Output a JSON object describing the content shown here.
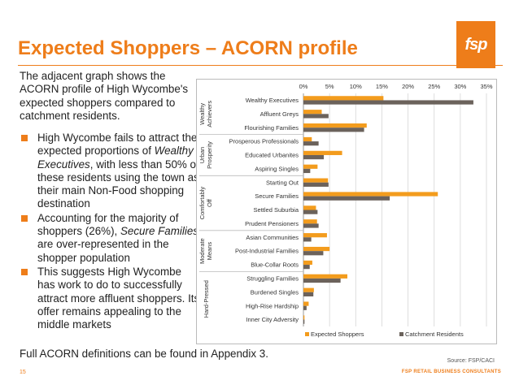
{
  "title": "Expected Shoppers – ACORN profile",
  "logo_text": "fsp",
  "intro": "The adjacent graph shows the ACORN profile of High Wycombe's expected shoppers compared to catchment residents.",
  "bullets": [
    {
      "html_parts": [
        "High Wycombe fails to attract the expected proportions of ",
        "Wealthy Executives",
        ", with less than 50% of these residents using the town as their main Non-Food shopping destination"
      ]
    },
    {
      "html_parts": [
        "Accounting for the majority of shoppers (26%), ",
        "Secure Families",
        " are over-represented in the shopper population"
      ]
    },
    {
      "html_parts": [
        "This suggests High Wycombe has work to do to successfully attract more affluent shoppers. Its offer remains appealing to the middle markets",
        "",
        ""
      ]
    }
  ],
  "footer_note": "Full ACORN definitions can be found in Appendix 3.",
  "source": "Source: FSP/CACI",
  "page_number": "15",
  "brand": "FSP RETAIL BUSINESS CONSULTANTS",
  "colors": {
    "accent": "#ee7d1a",
    "expected": "#f39c1d",
    "catchment": "#6b625b"
  },
  "chart_data": {
    "type": "bar",
    "orientation": "horizontal",
    "x_ticks": [
      "0%",
      "5%",
      "10%",
      "15%",
      "20%",
      "25%",
      "30%",
      "35%"
    ],
    "xlim": [
      0,
      35
    ],
    "grid": true,
    "legend_position": "bottom",
    "groups": [
      {
        "label": "Wealthy Achievers",
        "categories": [
          "Wealthy Executives",
          "Affluent Greys",
          "Flourishing Families"
        ]
      },
      {
        "label": "Urban Prosperity",
        "categories": [
          "Prosperous Professionals",
          "Educated Urbanites",
          "Aspiring Singles"
        ]
      },
      {
        "label": "Comfortably Off",
        "categories": [
          "Starting Out",
          "Secure Families",
          "Settled Suburbia",
          "Prudent Pensioners"
        ]
      },
      {
        "label": "Moderate Means",
        "categories": [
          "Asian Communities",
          "Post-Industrial Families",
          "Blue-Collar Roots"
        ]
      },
      {
        "label": "Hard-Pressed",
        "categories": [
          "Struggling Families",
          "Burdened Singles",
          "High-Rise Hardship",
          "Inner City Adversity"
        ]
      }
    ],
    "categories": [
      "Wealthy Executives",
      "Affluent Greys",
      "Flourishing Families",
      "Prosperous Professionals",
      "Educated Urbanites",
      "Aspiring Singles",
      "Starting Out",
      "Secure Families",
      "Settled Suburbia",
      "Prudent Pensioners",
      "Asian Communities",
      "Post-Industrial Families",
      "Blue-Collar Roots",
      "Struggling Families",
      "Burdened Singles",
      "High-Rise Hardship",
      "Inner City Adversity"
    ],
    "series": [
      {
        "name": "Expected Shoppers",
        "values": [
          15.3,
          3.5,
          12.1,
          1.6,
          7.4,
          2.7,
          4.7,
          25.7,
          2.4,
          2.6,
          4.5,
          5.0,
          1.7,
          8.4,
          2.0,
          1.0,
          0.2
        ]
      },
      {
        "name": "Catchment Residents",
        "values": [
          32.5,
          4.8,
          11.6,
          2.9,
          3.9,
          1.3,
          4.8,
          16.5,
          2.7,
          2.9,
          1.5,
          3.8,
          1.2,
          7.1,
          1.9,
          0.6,
          0.2
        ]
      }
    ]
  }
}
